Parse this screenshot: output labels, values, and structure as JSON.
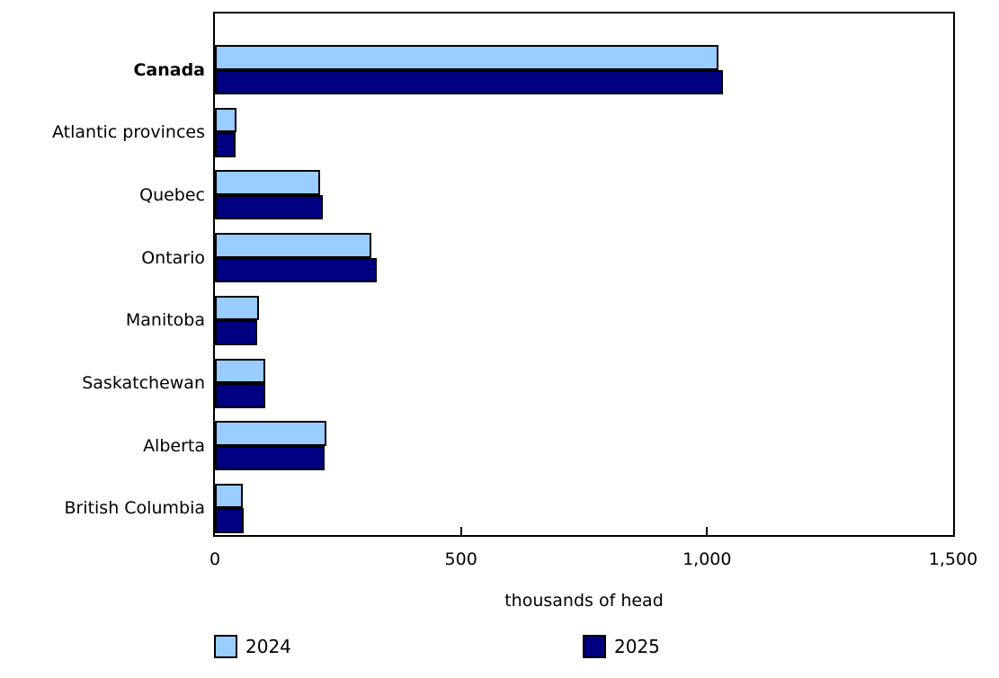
{
  "chart_data": {
    "type": "bar",
    "orientation": "horizontal",
    "title": "",
    "xlabel": "thousands of head",
    "ylabel": "",
    "xlim": [
      0,
      1500
    ],
    "grid": false,
    "legend_position": "bottom",
    "categories": [
      "Canada",
      "Atlantic provinces",
      "Quebec",
      "Ontario",
      "Manitoba",
      "Saskatchewan",
      "Alberta",
      "British Columbia"
    ],
    "emphasized_category": "Canada",
    "series": [
      {
        "name": "2024",
        "color": "#99CCFF",
        "values": [
          1023,
          43,
          214,
          317,
          89,
          102,
          227,
          57
        ]
      },
      {
        "name": "2025",
        "color": "#000080",
        "values": [
          1033,
          42,
          220,
          328,
          86,
          103,
          223,
          59
        ]
      }
    ],
    "xticks": [
      {
        "value": 0,
        "label": "0"
      },
      {
        "value": 500,
        "label": "500"
      },
      {
        "value": 1000,
        "label": "1,000"
      },
      {
        "value": 1500,
        "label": "1,500"
      }
    ],
    "bar_border_color": "#000000"
  }
}
